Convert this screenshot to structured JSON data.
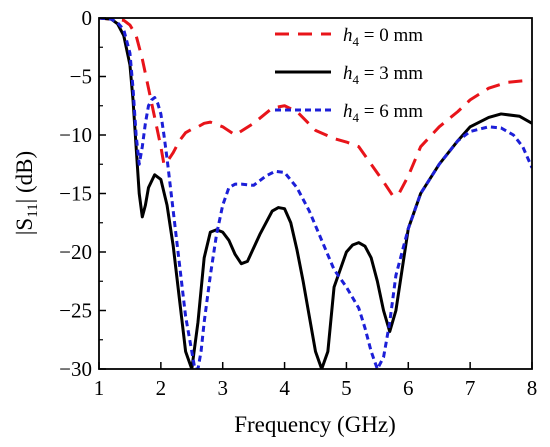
{
  "chart_data": {
    "type": "line",
    "xlabel": "Frequency (GHz)",
    "ylabel": "|S11| (dB)",
    "ylabel_parts": {
      "pre": "|S",
      "sub": "11",
      "post": "| (dB)"
    },
    "xlim": [
      1,
      8
    ],
    "ylim": [
      -30,
      0
    ],
    "xticks": [
      1,
      2,
      3,
      4,
      5,
      6,
      7,
      8
    ],
    "yticks": [
      0,
      -5,
      -10,
      -15,
      -20,
      -25,
      -30
    ],
    "grid": false,
    "legend_position": "top-right",
    "series": [
      {
        "name": "h4 = 0 mm",
        "legend": {
          "var": "h",
          "sub": "4",
          "rest": " = 0 mm"
        },
        "color": "#e8141a",
        "style": "dashed",
        "x": [
          1.0,
          1.2,
          1.4,
          1.5,
          1.6,
          1.7,
          1.8,
          1.9,
          2.0,
          2.05,
          2.1,
          2.2,
          2.3,
          2.4,
          2.5,
          2.6,
          2.7,
          2.8,
          3.0,
          3.2,
          3.5,
          3.8,
          4.0,
          4.2,
          4.5,
          4.8,
          5.0,
          5.2,
          5.4,
          5.6,
          5.75,
          5.85,
          6.0,
          6.2,
          6.5,
          6.8,
          7.0,
          7.3,
          7.6,
          8.0
        ],
        "values": [
          0,
          -0.1,
          -0.2,
          -0.6,
          -1.5,
          -3.5,
          -6.0,
          -8.5,
          -11.0,
          -12.5,
          -12.3,
          -11.5,
          -10.5,
          -9.8,
          -9.5,
          -9.3,
          -9.0,
          -8.9,
          -9.3,
          -10.0,
          -9.0,
          -7.7,
          -7.5,
          -8.0,
          -9.6,
          -10.3,
          -10.6,
          -11.0,
          -12.5,
          -14.0,
          -15.2,
          -15.0,
          -13.5,
          -11.0,
          -9.3,
          -8.0,
          -7.0,
          -6.0,
          -5.5,
          -5.3
        ]
      },
      {
        "name": "h4 = 3 mm",
        "legend": {
          "var": "h",
          "sub": "4",
          "rest": " = 3 mm"
        },
        "color": "#000000",
        "style": "solid",
        "x": [
          1.0,
          1.2,
          1.3,
          1.4,
          1.5,
          1.55,
          1.6,
          1.65,
          1.7,
          1.75,
          1.8,
          1.9,
          2.0,
          2.1,
          2.2,
          2.3,
          2.4,
          2.5,
          2.6,
          2.7,
          2.8,
          2.9,
          3.0,
          3.1,
          3.2,
          3.3,
          3.4,
          3.6,
          3.8,
          3.9,
          4.0,
          4.1,
          4.2,
          4.3,
          4.4,
          4.5,
          4.6,
          4.7,
          4.8,
          5.0,
          5.1,
          5.2,
          5.3,
          5.4,
          5.5,
          5.6,
          5.7,
          5.8,
          5.9,
          6.0,
          6.2,
          6.5,
          6.8,
          7.0,
          7.3,
          7.5,
          7.8,
          8.0
        ],
        "values": [
          0,
          -0.1,
          -0.5,
          -1.5,
          -4.0,
          -7.0,
          -11.0,
          -15.0,
          -17.0,
          -16.0,
          -14.5,
          -13.4,
          -13.8,
          -16.0,
          -19.5,
          -24.0,
          -28.5,
          -30.0,
          -26.0,
          -20.5,
          -18.3,
          -18.1,
          -18.3,
          -19.0,
          -20.2,
          -21.0,
          -20.8,
          -18.5,
          -16.5,
          -16.2,
          -16.3,
          -17.5,
          -19.8,
          -22.5,
          -25.5,
          -28.5,
          -30.0,
          -28.5,
          -23.0,
          -20.0,
          -19.4,
          -19.2,
          -19.5,
          -20.5,
          -22.5,
          -25.0,
          -26.8,
          -25.0,
          -21.5,
          -18.0,
          -15.0,
          -12.5,
          -10.5,
          -9.3,
          -8.5,
          -8.2,
          -8.4,
          -9.0
        ]
      },
      {
        "name": "h4 = 6 mm",
        "legend": {
          "var": "h",
          "sub": "4",
          "rest": " = 6 mm"
        },
        "color": "#1c1fd8",
        "style": "dotted",
        "x": [
          1.0,
          1.2,
          1.3,
          1.4,
          1.5,
          1.55,
          1.6,
          1.65,
          1.7,
          1.75,
          1.8,
          1.85,
          1.9,
          1.95,
          2.0,
          2.05,
          2.1,
          2.2,
          2.3,
          2.4,
          2.5,
          2.55,
          2.6,
          2.65,
          2.7,
          2.8,
          2.9,
          3.0,
          3.1,
          3.2,
          3.3,
          3.5,
          3.7,
          3.85,
          4.0,
          4.2,
          4.4,
          4.6,
          4.8,
          5.0,
          5.2,
          5.3,
          5.4,
          5.5,
          5.6,
          5.7,
          5.8,
          6.0,
          6.2,
          6.5,
          6.8,
          7.0,
          7.3,
          7.5,
          7.7,
          7.85,
          8.0
        ],
        "values": [
          0,
          -0.1,
          -0.4,
          -1.0,
          -3.0,
          -6.0,
          -10.0,
          -12.5,
          -11.0,
          -9.0,
          -7.5,
          -7.0,
          -6.8,
          -7.3,
          -8.2,
          -10.0,
          -12.0,
          -16.5,
          -21.0,
          -25.5,
          -28.5,
          -30.0,
          -30.0,
          -28.5,
          -26.0,
          -22.0,
          -18.5,
          -16.0,
          -14.5,
          -14.2,
          -14.2,
          -14.3,
          -13.5,
          -13.1,
          -13.2,
          -14.5,
          -16.5,
          -19.0,
          -21.5,
          -23.0,
          -24.8,
          -26.5,
          -28.5,
          -30.0,
          -29.0,
          -26.0,
          -22.0,
          -18.0,
          -15.0,
          -12.5,
          -10.5,
          -9.7,
          -9.3,
          -9.4,
          -10.0,
          -11.0,
          -12.8
        ]
      }
    ]
  }
}
